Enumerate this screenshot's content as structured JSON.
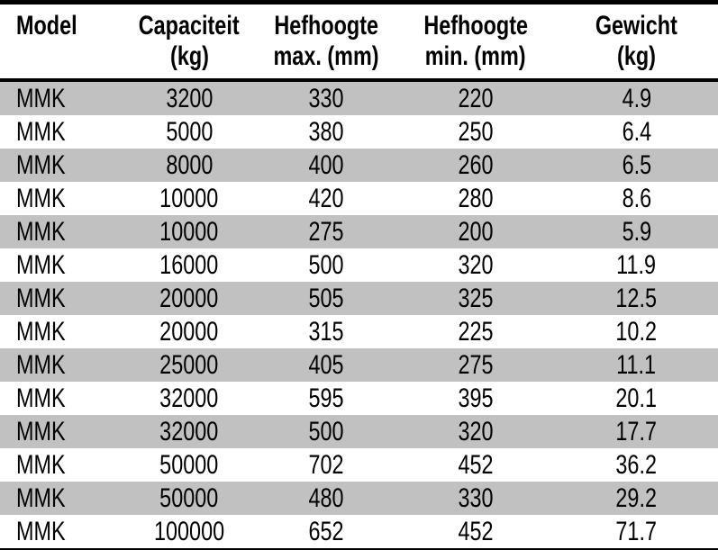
{
  "table": {
    "columns": [
      {
        "id": "model",
        "line1": "Model",
        "line2": ""
      },
      {
        "id": "capacity",
        "line1": "Capaciteit",
        "line2": "(kg)"
      },
      {
        "id": "lift_max",
        "line1": "Hefhoogte",
        "line2": "max. (mm)"
      },
      {
        "id": "lift_min",
        "line1": "Hefhoogte",
        "line2": "min. (mm)"
      },
      {
        "id": "weight",
        "line1": "Gewicht",
        "line2": "(kg)"
      }
    ],
    "rows": [
      {
        "model": "MMK",
        "capacity": "3200",
        "lift_max": "330",
        "lift_min": "220",
        "weight": "4.9"
      },
      {
        "model": "MMK",
        "capacity": "5000",
        "lift_max": "380",
        "lift_min": "250",
        "weight": "6.4"
      },
      {
        "model": "MMK",
        "capacity": "8000",
        "lift_max": "400",
        "lift_min": "260",
        "weight": "6.5"
      },
      {
        "model": "MMK",
        "capacity": "10000",
        "lift_max": "420",
        "lift_min": "280",
        "weight": "8.6"
      },
      {
        "model": "MMK",
        "capacity": "10000",
        "lift_max": "275",
        "lift_min": "200",
        "weight": "5.9"
      },
      {
        "model": "MMK",
        "capacity": "16000",
        "lift_max": "500",
        "lift_min": "320",
        "weight": "11.9"
      },
      {
        "model": "MMK",
        "capacity": "20000",
        "lift_max": "505",
        "lift_min": "325",
        "weight": "12.5"
      },
      {
        "model": "MMK",
        "capacity": "20000",
        "lift_max": "315",
        "lift_min": "225",
        "weight": "10.2"
      },
      {
        "model": "MMK",
        "capacity": "25000",
        "lift_max": "405",
        "lift_min": "275",
        "weight": "11.1"
      },
      {
        "model": "MMK",
        "capacity": "32000",
        "lift_max": "595",
        "lift_min": "395",
        "weight": "20.1"
      },
      {
        "model": "MMK",
        "capacity": "32000",
        "lift_max": "500",
        "lift_min": "320",
        "weight": "17.7"
      },
      {
        "model": "MMK",
        "capacity": "50000",
        "lift_max": "702",
        "lift_min": "452",
        "weight": "36.2"
      },
      {
        "model": "MMK",
        "capacity": "50000",
        "lift_max": "480",
        "lift_min": "330",
        "weight": "29.2"
      },
      {
        "model": "MMK",
        "capacity": "100000",
        "lift_max": "652",
        "lift_min": "452",
        "weight": "71.7"
      }
    ]
  },
  "colors": {
    "stripe": "#c1c1c1",
    "rule": "#000000",
    "background": "#ffffff",
    "text": "#000000"
  }
}
